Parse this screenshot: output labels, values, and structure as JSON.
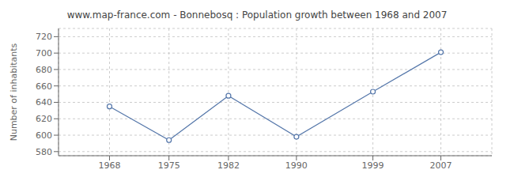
{
  "chart_data": {
    "type": "line",
    "title": "www.map-france.com - Bonnebosq : Population growth between 1968 and 2007",
    "ylabel": "Number of inhabitants",
    "x": [
      1968,
      1975,
      1982,
      1990,
      1999,
      2007
    ],
    "values": [
      635,
      594,
      648,
      598,
      653,
      701
    ],
    "color": "#5577aa",
    "marker": "circle",
    "xlim": [
      1962,
      2013
    ],
    "xticks": [
      1968,
      1975,
      1982,
      1990,
      1999,
      2007
    ],
    "ylim": [
      575,
      730
    ],
    "yticks": [
      580,
      600,
      620,
      640,
      660,
      680,
      700,
      720
    ],
    "grid": true
  }
}
